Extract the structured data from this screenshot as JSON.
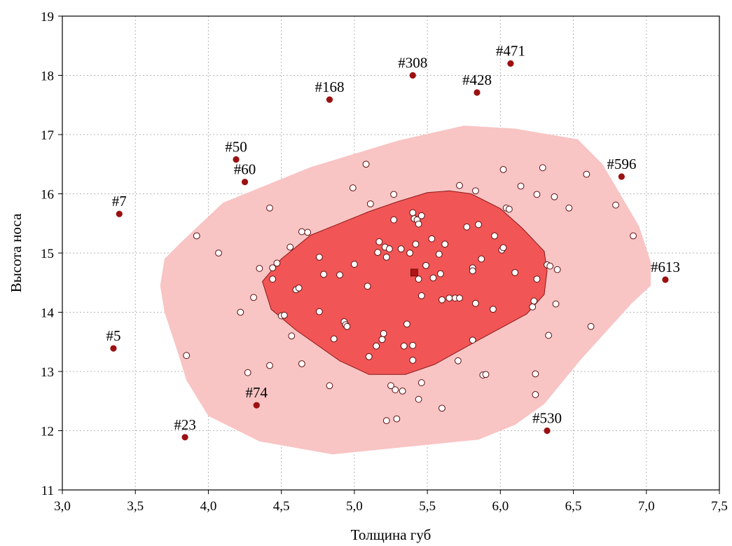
{
  "chart_data": {
    "type": "scatter",
    "title": "",
    "xlabel": "Толщина губ",
    "ylabel": "Высота носа",
    "xlim": [
      3.0,
      7.5
    ],
    "ylim": [
      11,
      19
    ],
    "x_ticks": [
      3.0,
      3.5,
      4.0,
      4.5,
      5.0,
      5.5,
      6.0,
      6.5,
      7.0,
      7.5
    ],
    "x_tick_labels": [
      "3,0",
      "3,5",
      "4,0",
      "4,5",
      "5,0",
      "5,5",
      "6,0",
      "6,5",
      "7,0",
      "7,5"
    ],
    "y_ticks": [
      11,
      12,
      13,
      14,
      15,
      16,
      17,
      18,
      19
    ],
    "y_tick_labels": [
      "11",
      "12",
      "13",
      "14",
      "15",
      "16",
      "17",
      "18",
      "19"
    ],
    "grid": true,
    "legend": "none",
    "colors": {
      "outer_bag": "#f9c4c4",
      "inner_bag": "#f25555",
      "inner_bag_stroke": "#8b1a1a",
      "point_fill": "#ffffff",
      "point_stroke": "#5a1010",
      "outlier": "#9b1111",
      "median": "#b01515"
    },
    "median": {
      "x": 5.41,
      "y": 14.67
    },
    "inner_bag_polygon": [
      [
        4.37,
        14.52
      ],
      [
        4.5,
        14.9
      ],
      [
        4.7,
        15.3
      ],
      [
        4.9,
        15.5
      ],
      [
        5.1,
        15.7
      ],
      [
        5.3,
        15.87
      ],
      [
        5.5,
        16.02
      ],
      [
        5.65,
        16.05
      ],
      [
        5.8,
        16.0
      ],
      [
        6.0,
        15.75
      ],
      [
        6.15,
        15.42
      ],
      [
        6.3,
        15.03
      ],
      [
        6.32,
        14.7
      ],
      [
        6.3,
        14.3
      ],
      [
        6.18,
        13.97
      ],
      [
        5.85,
        13.53
      ],
      [
        5.55,
        13.12
      ],
      [
        5.35,
        12.95
      ],
      [
        5.1,
        12.95
      ],
      [
        4.9,
        13.18
      ],
      [
        4.6,
        13.7
      ],
      [
        4.43,
        14.05
      ]
    ],
    "outer_bag_polygon": [
      [
        3.67,
        14.45
      ],
      [
        3.7,
        14.9
      ],
      [
        3.8,
        15.15
      ],
      [
        4.1,
        15.85
      ],
      [
        4.7,
        16.45
      ],
      [
        5.3,
        16.9
      ],
      [
        5.75,
        17.15
      ],
      [
        6.1,
        17.1
      ],
      [
        6.53,
        16.92
      ],
      [
        6.7,
        16.5
      ],
      [
        6.95,
        15.45
      ],
      [
        7.03,
        14.85
      ],
      [
        7.03,
        14.45
      ],
      [
        6.9,
        14.15
      ],
      [
        6.55,
        13.2
      ],
      [
        6.3,
        12.45
      ],
      [
        6.1,
        12.1
      ],
      [
        5.85,
        11.85
      ],
      [
        5.45,
        11.75
      ],
      [
        4.85,
        11.6
      ],
      [
        4.35,
        11.82
      ],
      [
        4.0,
        12.25
      ],
      [
        3.85,
        12.85
      ],
      [
        3.8,
        13.25
      ],
      [
        3.7,
        14.0
      ]
    ],
    "points": [
      {
        "x": 3.92,
        "y": 15.29
      },
      {
        "x": 4.07,
        "y": 15.0
      },
      {
        "x": 3.85,
        "y": 13.27
      },
      {
        "x": 4.22,
        "y": 14.0
      },
      {
        "x": 4.27,
        "y": 12.98
      },
      {
        "x": 4.31,
        "y": 14.25
      },
      {
        "x": 4.35,
        "y": 14.74
      },
      {
        "x": 4.42,
        "y": 15.76
      },
      {
        "x": 4.42,
        "y": 13.1
      },
      {
        "x": 4.44,
        "y": 14.75
      },
      {
        "x": 4.44,
        "y": 14.56
      },
      {
        "x": 4.47,
        "y": 14.83
      },
      {
        "x": 4.5,
        "y": 13.94
      },
      {
        "x": 4.52,
        "y": 13.95
      },
      {
        "x": 4.56,
        "y": 15.1
      },
      {
        "x": 4.57,
        "y": 13.6
      },
      {
        "x": 4.6,
        "y": 14.38
      },
      {
        "x": 4.62,
        "y": 14.41
      },
      {
        "x": 4.64,
        "y": 15.36
      },
      {
        "x": 4.64,
        "y": 13.13
      },
      {
        "x": 4.68,
        "y": 15.35
      },
      {
        "x": 4.76,
        "y": 14.93
      },
      {
        "x": 4.76,
        "y": 14.01
      },
      {
        "x": 4.79,
        "y": 14.64
      },
      {
        "x": 4.83,
        "y": 12.76
      },
      {
        "x": 4.86,
        "y": 13.55
      },
      {
        "x": 4.9,
        "y": 14.63
      },
      {
        "x": 4.93,
        "y": 13.84
      },
      {
        "x": 4.94,
        "y": 13.79
      },
      {
        "x": 4.95,
        "y": 13.76
      },
      {
        "x": 4.99,
        "y": 16.1
      },
      {
        "x": 5.0,
        "y": 14.81
      },
      {
        "x": 5.08,
        "y": 16.5
      },
      {
        "x": 5.09,
        "y": 14.44
      },
      {
        "x": 5.1,
        "y": 13.25
      },
      {
        "x": 5.11,
        "y": 15.83
      },
      {
        "x": 5.15,
        "y": 13.43
      },
      {
        "x": 5.16,
        "y": 15.01
      },
      {
        "x": 5.17,
        "y": 15.19
      },
      {
        "x": 5.19,
        "y": 13.54
      },
      {
        "x": 5.2,
        "y": 13.64
      },
      {
        "x": 5.21,
        "y": 15.1
      },
      {
        "x": 5.22,
        "y": 14.93
      },
      {
        "x": 5.22,
        "y": 12.17
      },
      {
        "x": 5.24,
        "y": 15.07
      },
      {
        "x": 5.25,
        "y": 12.76
      },
      {
        "x": 5.27,
        "y": 15.56
      },
      {
        "x": 5.27,
        "y": 15.99
      },
      {
        "x": 5.28,
        "y": 12.69
      },
      {
        "x": 5.29,
        "y": 12.2
      },
      {
        "x": 5.32,
        "y": 15.07
      },
      {
        "x": 5.33,
        "y": 12.67
      },
      {
        "x": 5.34,
        "y": 13.43
      },
      {
        "x": 5.36,
        "y": 13.8
      },
      {
        "x": 5.38,
        "y": 15.0
      },
      {
        "x": 5.4,
        "y": 15.68
      },
      {
        "x": 5.4,
        "y": 13.44
      },
      {
        "x": 5.4,
        "y": 13.19
      },
      {
        "x": 5.41,
        "y": 15.58
      },
      {
        "x": 5.42,
        "y": 15.15
      },
      {
        "x": 5.43,
        "y": 15.56
      },
      {
        "x": 5.44,
        "y": 15.49
      },
      {
        "x": 5.44,
        "y": 14.56
      },
      {
        "x": 5.44,
        "y": 12.53
      },
      {
        "x": 5.46,
        "y": 15.63
      },
      {
        "x": 5.46,
        "y": 14.28
      },
      {
        "x": 5.46,
        "y": 12.81
      },
      {
        "x": 5.49,
        "y": 14.79
      },
      {
        "x": 5.53,
        "y": 15.24
      },
      {
        "x": 5.54,
        "y": 14.58
      },
      {
        "x": 5.58,
        "y": 14.98
      },
      {
        "x": 5.59,
        "y": 14.65
      },
      {
        "x": 5.6,
        "y": 14.21
      },
      {
        "x": 5.6,
        "y": 12.38
      },
      {
        "x": 5.62,
        "y": 15.15
      },
      {
        "x": 5.65,
        "y": 14.24
      },
      {
        "x": 5.69,
        "y": 14.24
      },
      {
        "x": 5.71,
        "y": 13.18
      },
      {
        "x": 5.72,
        "y": 16.14
      },
      {
        "x": 5.72,
        "y": 14.24
      },
      {
        "x": 5.77,
        "y": 15.44
      },
      {
        "x": 5.81,
        "y": 14.75
      },
      {
        "x": 5.81,
        "y": 14.7
      },
      {
        "x": 5.81,
        "y": 13.53
      },
      {
        "x": 5.83,
        "y": 16.05
      },
      {
        "x": 5.83,
        "y": 14.15
      },
      {
        "x": 5.85,
        "y": 15.48
      },
      {
        "x": 5.87,
        "y": 14.9
      },
      {
        "x": 5.88,
        "y": 12.94
      },
      {
        "x": 5.9,
        "y": 12.95
      },
      {
        "x": 5.95,
        "y": 14.05
      },
      {
        "x": 5.96,
        "y": 15.29
      },
      {
        "x": 6.01,
        "y": 15.05
      },
      {
        "x": 6.02,
        "y": 15.09
      },
      {
        "x": 6.02,
        "y": 16.41
      },
      {
        "x": 6.04,
        "y": 15.76
      },
      {
        "x": 6.06,
        "y": 15.74
      },
      {
        "x": 6.1,
        "y": 14.67
      },
      {
        "x": 6.14,
        "y": 16.13
      },
      {
        "x": 6.22,
        "y": 14.09
      },
      {
        "x": 6.23,
        "y": 14.19
      },
      {
        "x": 6.24,
        "y": 12.61
      },
      {
        "x": 6.24,
        "y": 12.96
      },
      {
        "x": 6.25,
        "y": 15.99
      },
      {
        "x": 6.25,
        "y": 14.56
      },
      {
        "x": 6.29,
        "y": 16.44
      },
      {
        "x": 6.32,
        "y": 14.8
      },
      {
        "x": 6.33,
        "y": 13.61
      },
      {
        "x": 6.34,
        "y": 14.78
      },
      {
        "x": 6.37,
        "y": 15.95
      },
      {
        "x": 6.38,
        "y": 14.14
      },
      {
        "x": 6.39,
        "y": 14.72
      },
      {
        "x": 6.47,
        "y": 15.76
      },
      {
        "x": 6.59,
        "y": 16.33
      },
      {
        "x": 6.62,
        "y": 13.76
      },
      {
        "x": 6.79,
        "y": 15.81
      },
      {
        "x": 6.91,
        "y": 15.29
      }
    ],
    "outliers": [
      {
        "label": "#471",
        "x": 6.07,
        "y": 18.2
      },
      {
        "label": "#308",
        "x": 5.4,
        "y": 18.0
      },
      {
        "label": "#428",
        "x": 5.84,
        "y": 17.71
      },
      {
        "label": "#168",
        "x": 4.83,
        "y": 17.59
      },
      {
        "label": "#50",
        "x": 4.19,
        "y": 16.58
      },
      {
        "label": "#60",
        "x": 4.25,
        "y": 16.2
      },
      {
        "label": "#596",
        "x": 6.83,
        "y": 16.29
      },
      {
        "label": "#7",
        "x": 3.39,
        "y": 15.66
      },
      {
        "label": "#613",
        "x": 7.13,
        "y": 14.55
      },
      {
        "label": "#5",
        "x": 3.35,
        "y": 13.39
      },
      {
        "label": "#74",
        "x": 4.33,
        "y": 12.43
      },
      {
        "label": "#530",
        "x": 6.32,
        "y": 12.0
      },
      {
        "label": "#23",
        "x": 3.84,
        "y": 11.89
      }
    ]
  }
}
